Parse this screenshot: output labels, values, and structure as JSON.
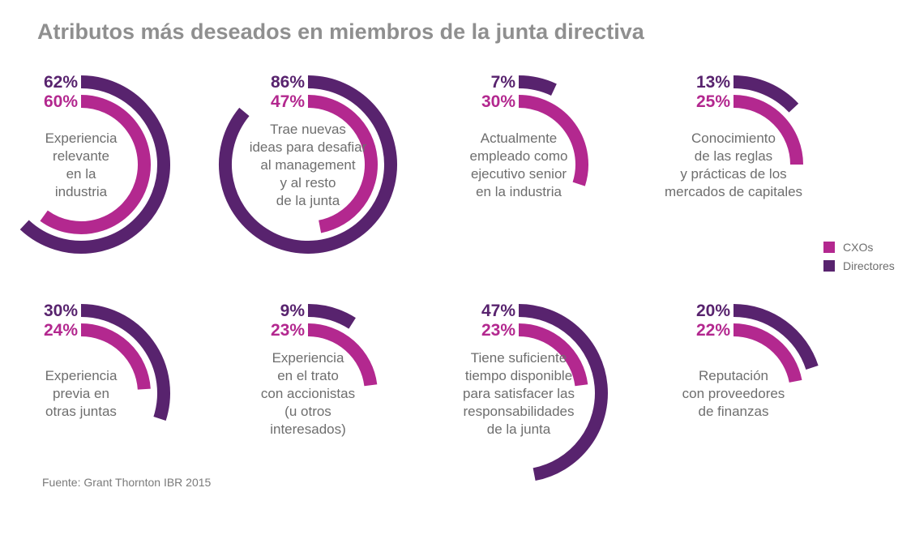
{
  "title": "Atributos más deseados en miembros de la junta directiva",
  "source": "Fuente: Grant Thornton IBR 2015",
  "colors": {
    "cxo": "#b3288f",
    "directores": "#58236e"
  },
  "chart_data": {
    "type": "radial-bar",
    "series": [
      {
        "name": "CXOs",
        "color": "#b3288f"
      },
      {
        "name": "Directores",
        "color": "#58236e"
      }
    ],
    "items": [
      {
        "lines": [
          "Experiencia",
          "relevante",
          "en la",
          "industria"
        ],
        "cxo": 60,
        "directores": 62
      },
      {
        "lines": [
          "Trae nuevas",
          "ideas para desafiar",
          "al management",
          "y al resto",
          "de la junta"
        ],
        "cxo": 47,
        "directores": 86
      },
      {
        "lines": [
          "Actualmente",
          "empleado como",
          "ejecutivo senior",
          "en la industria"
        ],
        "cxo": 30,
        "directores": 7
      },
      {
        "lines": [
          "Conocimiento",
          "de las reglas",
          "y prácticas de los",
          "mercados de capitales"
        ],
        "cxo": 25,
        "directores": 13
      },
      {
        "lines": [
          "Experiencia",
          "previa en",
          "otras juntas"
        ],
        "cxo": 24,
        "directores": 30
      },
      {
        "lines": [
          "Experiencia",
          "en el trato",
          "con accionistas",
          "(u otros",
          "interesados)"
        ],
        "cxo": 23,
        "directores": 9
      },
      {
        "lines": [
          "Tiene suficiente",
          "tiempo disponible",
          "para satisfacer las",
          "responsabilidades",
          "de la junta"
        ],
        "cxo": 23,
        "directores": 47
      },
      {
        "lines": [
          "Reputación",
          "con proveedores",
          "de finanzas"
        ],
        "cxo": 22,
        "directores": 20
      }
    ]
  }
}
